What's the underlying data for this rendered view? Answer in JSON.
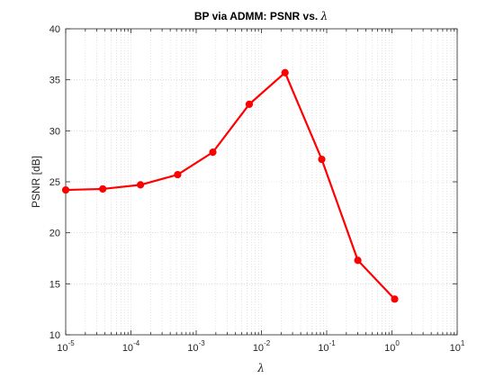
{
  "chart_data": {
    "type": "line",
    "title_text": "BP via ADMM: PSNR vs. ",
    "title_symbol": "λ",
    "xlabel": "λ",
    "ylabel": "PSNR [dB]",
    "x_scale": "log",
    "xlim": [
      1e-05,
      10
    ],
    "ylim": [
      10,
      40
    ],
    "x_ticks": [
      {
        "base": "10",
        "exp": "-5",
        "value": 1e-05
      },
      {
        "base": "10",
        "exp": "-4",
        "value": 0.0001
      },
      {
        "base": "10",
        "exp": "-3",
        "value": 0.001
      },
      {
        "base": "10",
        "exp": "-2",
        "value": 0.01
      },
      {
        "base": "10",
        "exp": "-1",
        "value": 0.1
      },
      {
        "base": "10",
        "exp": "0",
        "value": 1
      },
      {
        "base": "10",
        "exp": "1",
        "value": 10
      }
    ],
    "y_ticks": [
      "10",
      "15",
      "20",
      "25",
      "30",
      "35",
      "40"
    ],
    "grid": true,
    "series": [
      {
        "color": "#ff0000",
        "marker": "circle",
        "x": [
          1e-05,
          3.7e-05,
          0.00014,
          0.00052,
          0.0018,
          0.0065,
          0.023,
          0.084,
          0.3,
          1.1
        ],
        "y": [
          24.2,
          24.3,
          24.7,
          25.7,
          27.9,
          32.6,
          35.7,
          27.2,
          17.3,
          13.5
        ]
      }
    ]
  }
}
